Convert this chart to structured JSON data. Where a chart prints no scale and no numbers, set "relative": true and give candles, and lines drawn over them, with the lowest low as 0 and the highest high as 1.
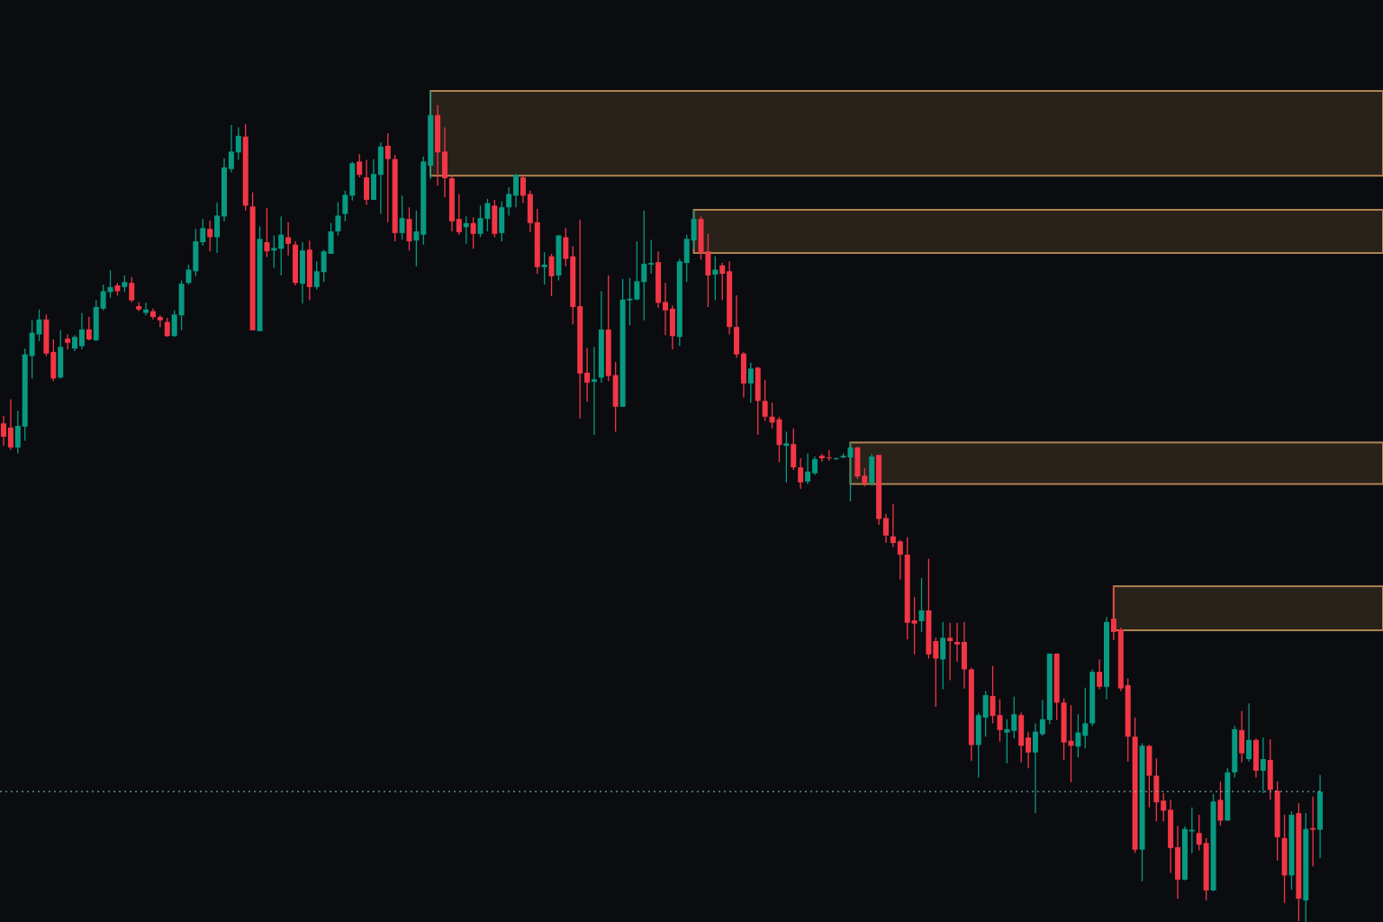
{
  "chart_data": {
    "type": "candlestick",
    "relative": true,
    "categories": [
      null,
      null,
      null,
      null,
      null,
      null,
      null,
      null,
      null,
      null,
      null,
      null,
      null,
      null,
      null,
      null,
      null,
      null,
      null,
      null,
      null,
      null,
      null,
      null,
      null,
      null,
      null,
      null,
      null,
      null,
      null,
      null,
      null,
      null,
      null,
      null,
      null,
      null,
      null,
      null,
      null,
      null,
      null,
      null,
      null,
      null,
      null,
      null,
      null,
      null,
      null,
      null,
      null,
      null,
      null,
      null,
      null,
      null,
      null,
      null,
      null,
      null,
      null,
      null,
      null,
      null,
      null,
      null,
      null,
      null,
      null,
      null,
      null,
      null,
      null,
      null,
      null,
      null,
      null,
      null,
      null,
      null,
      null,
      null,
      null,
      null,
      null,
      null,
      null,
      null,
      null,
      null,
      null,
      null,
      null,
      null,
      null,
      null,
      null,
      null,
      null,
      null,
      null,
      null,
      null,
      null,
      null,
      null,
      null,
      null,
      null,
      null,
      null,
      null,
      null,
      null,
      null,
      null,
      null,
      null,
      null,
      null,
      null,
      null,
      null,
      null,
      null,
      null,
      null,
      null,
      null,
      null,
      null,
      null,
      null,
      null,
      null,
      null,
      null,
      null,
      null,
      null,
      null,
      null,
      null,
      null,
      null,
      null,
      null,
      null,
      null,
      null,
      null,
      null,
      null,
      null,
      null,
      null,
      null,
      null,
      null,
      null,
      null,
      null,
      null,
      null,
      null,
      null,
      null,
      null,
      null,
      null,
      null,
      null,
      null,
      null,
      null,
      null,
      null,
      null,
      null,
      null,
      null,
      null,
      null,
      null
    ],
    "ohlc": [
      [
        0.6,
        0.609,
        0.573,
        0.584
      ],
      [
        0.595,
        0.629,
        0.568,
        0.571
      ],
      [
        0.571,
        0.615,
        0.564,
        0.597
      ],
      [
        0.596,
        0.69,
        0.579,
        0.683
      ],
      [
        0.681,
        0.724,
        0.654,
        0.709
      ],
      [
        0.707,
        0.737,
        0.699,
        0.725
      ],
      [
        0.725,
        0.731,
        0.681,
        0.684
      ],
      [
        0.686,
        0.701,
        0.651,
        0.654
      ],
      [
        0.655,
        0.712,
        0.654,
        0.692
      ],
      [
        0.702,
        0.707,
        0.689,
        0.697
      ],
      [
        0.69,
        0.706,
        0.687,
        0.704
      ],
      [
        0.693,
        0.733,
        0.689,
        0.713
      ],
      [
        0.713,
        0.728,
        0.7,
        0.701
      ],
      [
        0.7,
        0.748,
        0.699,
        0.74
      ],
      [
        0.738,
        0.767,
        0.736,
        0.759
      ],
      [
        0.758,
        0.784,
        0.751,
        0.764
      ],
      [
        0.766,
        0.769,
        0.754,
        0.759
      ],
      [
        0.764,
        0.778,
        0.758,
        0.77
      ],
      [
        0.769,
        0.776,
        0.746,
        0.748
      ],
      [
        0.741,
        0.746,
        0.735,
        0.737
      ],
      [
        0.733,
        0.745,
        0.73,
        0.737
      ],
      [
        0.735,
        0.738,
        0.725,
        0.728
      ],
      [
        0.728,
        0.73,
        0.716,
        0.724
      ],
      [
        0.722,
        0.727,
        0.704,
        0.705
      ],
      [
        0.705,
        0.736,
        0.704,
        0.731
      ],
      [
        0.73,
        0.772,
        0.712,
        0.768
      ],
      [
        0.769,
        0.791,
        0.767,
        0.785
      ],
      [
        0.783,
        0.834,
        0.777,
        0.819
      ],
      [
        0.818,
        0.846,
        0.814,
        0.835
      ],
      [
        0.834,
        0.844,
        0.807,
        0.824
      ],
      [
        0.824,
        0.866,
        0.805,
        0.85
      ],
      [
        0.849,
        0.919,
        0.843,
        0.908
      ],
      [
        0.906,
        0.959,
        0.902,
        0.927
      ],
      [
        0.926,
        0.956,
        0.917,
        0.946
      ],
      [
        0.945,
        0.96,
        0.856,
        0.862
      ],
      [
        0.861,
        0.878,
        0.712,
        0.712
      ],
      [
        0.711,
        0.837,
        0.711,
        0.822
      ],
      [
        0.818,
        0.859,
        0.8,
        0.807
      ],
      [
        0.808,
        0.826,
        0.787,
        0.811
      ],
      [
        0.81,
        0.849,
        0.778,
        0.827
      ],
      [
        0.824,
        0.842,
        0.802,
        0.816
      ],
      [
        0.815,
        0.819,
        0.766,
        0.769
      ],
      [
        0.768,
        0.818,
        0.744,
        0.808
      ],
      [
        0.809,
        0.82,
        0.748,
        0.764
      ],
      [
        0.764,
        0.795,
        0.761,
        0.783
      ],
      [
        0.782,
        0.809,
        0.77,
        0.807
      ],
      [
        0.804,
        0.841,
        0.804,
        0.831
      ],
      [
        0.831,
        0.866,
        0.826,
        0.85
      ],
      [
        0.852,
        0.88,
        0.843,
        0.875
      ],
      [
        0.874,
        0.915,
        0.868,
        0.913
      ],
      [
        0.915,
        0.924,
        0.896,
        0.899
      ],
      [
        0.896,
        0.917,
        0.863,
        0.869
      ],
      [
        0.869,
        0.918,
        0.869,
        0.9
      ],
      [
        0.899,
        0.938,
        0.852,
        0.933
      ],
      [
        0.934,
        0.949,
        0.842,
        0.918
      ],
      [
        0.918,
        0.923,
        0.819,
        0.829
      ],
      [
        0.829,
        0.874,
        0.821,
        0.847
      ],
      [
        0.846,
        0.86,
        0.808,
        0.819
      ],
      [
        0.82,
        0.856,
        0.789,
        0.831
      ],
      [
        0.827,
        0.921,
        0.815,
        0.915
      ],
      [
        0.91,
        1,
        0.894,
        0.971
      ],
      [
        0.971,
        0.983,
        0.886,
        0.926
      ],
      [
        0.927,
        0.956,
        0.872,
        0.895
      ],
      [
        0.895,
        0.899,
        0.831,
        0.843
      ],
      [
        0.846,
        0.876,
        0.827,
        0.83
      ],
      [
        0.836,
        0.849,
        0.816,
        0.841
      ],
      [
        0.841,
        0.848,
        0.81,
        0.828
      ],
      [
        0.828,
        0.862,
        0.824,
        0.847
      ],
      [
        0.846,
        0.87,
        0.831,
        0.865
      ],
      [
        0.862,
        0.869,
        0.824,
        0.828
      ],
      [
        0.829,
        0.867,
        0.819,
        0.86
      ],
      [
        0.86,
        0.884,
        0.85,
        0.876
      ],
      [
        0.874,
        0.9,
        0.86,
        0.899
      ],
      [
        0.896,
        0.898,
        0.865,
        0.874
      ],
      [
        0.876,
        0.88,
        0.83,
        0.841
      ],
      [
        0.842,
        0.858,
        0.78,
        0.788
      ],
      [
        0.788,
        0.806,
        0.767,
        0.791
      ],
      [
        0.801,
        0.804,
        0.753,
        0.777
      ],
      [
        0.778,
        0.827,
        0.772,
        0.826
      ],
      [
        0.824,
        0.835,
        0.789,
        0.798
      ],
      [
        0.801,
        0.813,
        0.719,
        0.74
      ],
      [
        0.741,
        0.845,
        0.606,
        0.66
      ],
      [
        0.661,
        0.691,
        0.626,
        0.649
      ],
      [
        0.65,
        0.692,
        0.586,
        0.653
      ],
      [
        0.655,
        0.759,
        0.649,
        0.713
      ],
      [
        0.713,
        0.778,
        0.651,
        0.657
      ],
      [
        0.658,
        0.674,
        0.59,
        0.62
      ],
      [
        0.62,
        0.774,
        0.62,
        0.749
      ],
      [
        0.748,
        0.775,
        0.718,
        0.75
      ],
      [
        0.749,
        0.819,
        0.748,
        0.771
      ],
      [
        0.77,
        0.856,
        0.724,
        0.792
      ],
      [
        0.791,
        0.821,
        0.78,
        0.793
      ],
      [
        0.794,
        0.807,
        0.739,
        0.745
      ],
      [
        0.746,
        0.769,
        0.706,
        0.736
      ],
      [
        0.738,
        0.742,
        0.689,
        0.705
      ],
      [
        0.704,
        0.798,
        0.693,
        0.795
      ],
      [
        0.793,
        0.827,
        0.77,
        0.822
      ],
      [
        0.82,
        0.857,
        0.81,
        0.846
      ],
      [
        0.846,
        0.849,
        0.797,
        0.805
      ],
      [
        0.807,
        0.828,
        0.74,
        0.778
      ],
      [
        0.779,
        0.801,
        0.748,
        0.785
      ],
      [
        0.79,
        0.793,
        0.748,
        0.78
      ],
      [
        0.783,
        0.795,
        0.707,
        0.716
      ],
      [
        0.716,
        0.754,
        0.679,
        0.683
      ],
      [
        0.684,
        0.686,
        0.631,
        0.648
      ],
      [
        0.648,
        0.673,
        0.625,
        0.666
      ],
      [
        0.667,
        0.668,
        0.586,
        0.627
      ],
      [
        0.627,
        0.652,
        0.603,
        0.608
      ],
      [
        0.608,
        0.625,
        0.594,
        0.601
      ],
      [
        0.605,
        0.608,
        0.553,
        0.574
      ],
      [
        0.573,
        0.59,
        0.529,
        0.576
      ],
      [
        0.575,
        0.594,
        0.544,
        0.547
      ],
      [
        0.547,
        0.558,
        0.521,
        0.529
      ],
      [
        0.53,
        0.564,
        0.527,
        0.542
      ],
      [
        0.54,
        0.56,
        0.538,
        0.557
      ],
      [
        0.561,
        0.563,
        0.554,
        0.558
      ],
      [
        0.559,
        0.568,
        0.555,
        0.558
      ],
      [
        0.557,
        0.559,
        0.556,
        0.558
      ],
      [
        0.559,
        0.564,
        0.558,
        0.561
      ],
      [
        0.559,
        0.577,
        0.506,
        0.571
      ],
      [
        0.571,
        0.572,
        0.533,
        0.536
      ],
      [
        0.537,
        0.546,
        0.524,
        0.528
      ],
      [
        0.528,
        0.563,
        0.525,
        0.56
      ],
      [
        0.562,
        0.562,
        0.478,
        0.485
      ],
      [
        0.486,
        0.491,
        0.456,
        0.465
      ],
      [
        0.464,
        0.503,
        0.451,
        0.456
      ],
      [
        0.458,
        0.46,
        0.412,
        0.442
      ],
      [
        0.442,
        0.463,
        0.34,
        0.36
      ],
      [
        0.363,
        0.391,
        0.322,
        0.359
      ],
      [
        0.362,
        0.414,
        0.349,
        0.375
      ],
      [
        0.375,
        0.437,
        0.317,
        0.322
      ],
      [
        0.338,
        0.342,
        0.259,
        0.317
      ],
      [
        0.316,
        0.361,
        0.28,
        0.342
      ],
      [
        0.342,
        0.36,
        0.291,
        0.338
      ],
      [
        0.337,
        0.36,
        0.313,
        0.334
      ],
      [
        0.337,
        0.361,
        0.281,
        0.304
      ],
      [
        0.304,
        0.306,
        0.194,
        0.213
      ],
      [
        0.213,
        0.252,
        0.174,
        0.249
      ],
      [
        0.246,
        0.278,
        0.223,
        0.273
      ],
      [
        0.272,
        0.308,
        0.239,
        0.248
      ],
      [
        0.249,
        0.268,
        0.217,
        0.231
      ],
      [
        0.228,
        0.244,
        0.191,
        0.232
      ],
      [
        0.23,
        0.271,
        0.221,
        0.25
      ],
      [
        0.249,
        0.252,
        0.192,
        0.212
      ],
      [
        0.222,
        0.229,
        0.185,
        0.204
      ],
      [
        0.204,
        0.239,
        0.131,
        0.229
      ],
      [
        0.226,
        0.267,
        0.224,
        0.244
      ],
      [
        0.243,
        0.323,
        0.238,
        0.323
      ],
      [
        0.323,
        0.323,
        0.243,
        0.264
      ],
      [
        0.264,
        0.269,
        0.195,
        0.216
      ],
      [
        0.218,
        0.261,
        0.168,
        0.212
      ],
      [
        0.211,
        0.25,
        0.198,
        0.228
      ],
      [
        0.224,
        0.282,
        0.209,
        0.239
      ],
      [
        0.239,
        0.304,
        0.236,
        0.301
      ],
      [
        0.301,
        0.316,
        0.28,
        0.283
      ],
      [
        0.283,
        0.367,
        0.268,
        0.361
      ],
      [
        0.365,
        0.404,
        0.339,
        0.349
      ],
      [
        0.352,
        0.354,
        0.278,
        0.281
      ],
      [
        0.285,
        0.293,
        0.193,
        0.223
      ],
      [
        0.223,
        0.246,
        0.083,
        0.087
      ],
      [
        0.087,
        0.215,
        0.049,
        0.212
      ],
      [
        0.212,
        0.213,
        0.138,
        0.176
      ],
      [
        0.176,
        0.197,
        0.121,
        0.144
      ],
      [
        0.146,
        0.155,
        0.121,
        0.134
      ],
      [
        0.135,
        0.147,
        0.059,
        0.089
      ],
      [
        0.09,
        0.116,
        0.028,
        0.051
      ],
      [
        0.051,
        0.115,
        0.05,
        0.112
      ],
      [
        0.109,
        0.138,
        0.083,
        0.111
      ],
      [
        0.107,
        0.129,
        0.086,
        0.093
      ],
      [
        0.095,
        0.101,
        0.026,
        0.038
      ],
      [
        0.038,
        0.154,
        0.037,
        0.145
      ],
      [
        0.147,
        0.169,
        0.116,
        0.122
      ],
      [
        0.122,
        0.185,
        0.122,
        0.18
      ],
      [
        0.18,
        0.236,
        0.174,
        0.232
      ],
      [
        0.231,
        0.254,
        0.192,
        0.203
      ],
      [
        0.196,
        0.263,
        0.193,
        0.219
      ],
      [
        0.219,
        0.221,
        0.174,
        0.182
      ],
      [
        0.182,
        0.222,
        0.155,
        0.196
      ],
      [
        0.195,
        0.22,
        0.147,
        0.159
      ],
      [
        0.158,
        0.169,
        0.074,
        0.102
      ],
      [
        0.101,
        0.129,
        0.023,
        0.056
      ],
      [
        0.056,
        0.133,
        0.039,
        0.129
      ],
      [
        0.131,
        0.143,
        0.001,
        0.028
      ],
      [
        0.026,
        0.131,
        0,
        0.112
      ],
      [
        0.113,
        0.151,
        0.067,
        0.111
      ],
      [
        0.111,
        0.177,
        0.077,
        0.157
      ]
    ],
    "colors": [
      "#f23645",
      "#f23645",
      "#089981",
      "#089981",
      "#089981",
      "#089981",
      "#f23645",
      "#f23645",
      "#089981",
      "#f23645",
      "#089981",
      "#089981",
      "#f23645",
      "#089981",
      "#089981",
      "#089981",
      "#f23645",
      "#089981",
      "#f23645",
      "#f23645",
      "#089981",
      "#f23645",
      "#f23645",
      "#f23645",
      "#089981",
      "#089981",
      "#089981",
      "#089981",
      "#089981",
      "#f23645",
      "#089981",
      "#089981",
      "#089981",
      "#089981",
      "#f23645",
      "#f23645",
      "#089981",
      "#f23645",
      "#089981",
      "#089981",
      "#f23645",
      "#f23645",
      "#089981",
      "#f23645",
      "#089981",
      "#089981",
      "#089981",
      "#089981",
      "#089981",
      "#089981",
      "#f23645",
      "#f23645",
      "#089981",
      "#089981",
      "#f23645",
      "#f23645",
      "#089981",
      "#f23645",
      "#089981",
      "#089981",
      "#089981",
      "#f23645",
      "#f23645",
      "#f23645",
      "#f23645",
      "#089981",
      "#f23645",
      "#089981",
      "#089981",
      "#f23645",
      "#089981",
      "#089981",
      "#089981",
      "#f23645",
      "#f23645",
      "#f23645",
      "#089981",
      "#f23645",
      "#089981",
      "#f23645",
      "#f23645",
      "#f23645",
      "#f23645",
      "#089981",
      "#089981",
      "#f23645",
      "#f23645",
      "#089981",
      "#089981",
      "#089981",
      "#089981",
      "#089981",
      "#f23645",
      "#f23645",
      "#f23645",
      "#089981",
      "#089981",
      "#089981",
      "#f23645",
      "#f23645",
      "#089981",
      "#f23645",
      "#f23645",
      "#f23645",
      "#f23645",
      "#089981",
      "#f23645",
      "#f23645",
      "#f23645",
      "#f23645",
      "#089981",
      "#f23645",
      "#f23645",
      "#089981",
      "#089981",
      "#f23645",
      "#f23645",
      "#089981",
      "#089981",
      "#089981",
      "#f23645",
      "#f23645",
      "#089981",
      "#f23645",
      "#f23645",
      "#f23645",
      "#f23645",
      "#f23645",
      "#f23645",
      "#089981",
      "#f23645",
      "#f23645",
      "#089981",
      "#f23645",
      "#f23645",
      "#f23645",
      "#f23645",
      "#089981",
      "#089981",
      "#f23645",
      "#f23645",
      "#089981",
      "#089981",
      "#f23645",
      "#f23645",
      "#089981",
      "#089981",
      "#089981",
      "#f23645",
      "#f23645",
      "#f23645",
      "#089981",
      "#089981",
      "#089981",
      "#f23645",
      "#089981",
      "#f23645",
      "#f23645",
      "#f23645",
      "#f23645",
      "#089981",
      "#f23645",
      "#f23645",
      "#f23645",
      "#f23645",
      "#f23645",
      "#089981",
      "#089981",
      "#f23645",
      "#f23645",
      "#089981",
      "#f23645",
      "#089981",
      "#089981",
      "#f23645",
      "#089981",
      "#f23645",
      "#089981",
      "#f23645",
      "#f23645",
      "#f23645",
      "#089981",
      "#f23645",
      "#089981",
      "#f23645",
      "#089981"
    ],
    "bands": [
      {
        "axis": "y",
        "from": 0.898,
        "to": 1,
        "color": "#c8955a"
      },
      {
        "axis": "y",
        "from": 0.805,
        "to": 0.857,
        "color": "#c8955a"
      },
      {
        "axis": "y",
        "from": 0.527,
        "to": 0.577,
        "color": "#c8955a"
      },
      {
        "axis": "y",
        "from": 0.351,
        "to": 0.404,
        "color": "#c8955a"
      }
    ],
    "ref_lines": [
      {
        "axis": "y",
        "value": 0.157,
        "color": "#8cc8c8",
        "line_style": "dotted"
      }
    ]
  }
}
